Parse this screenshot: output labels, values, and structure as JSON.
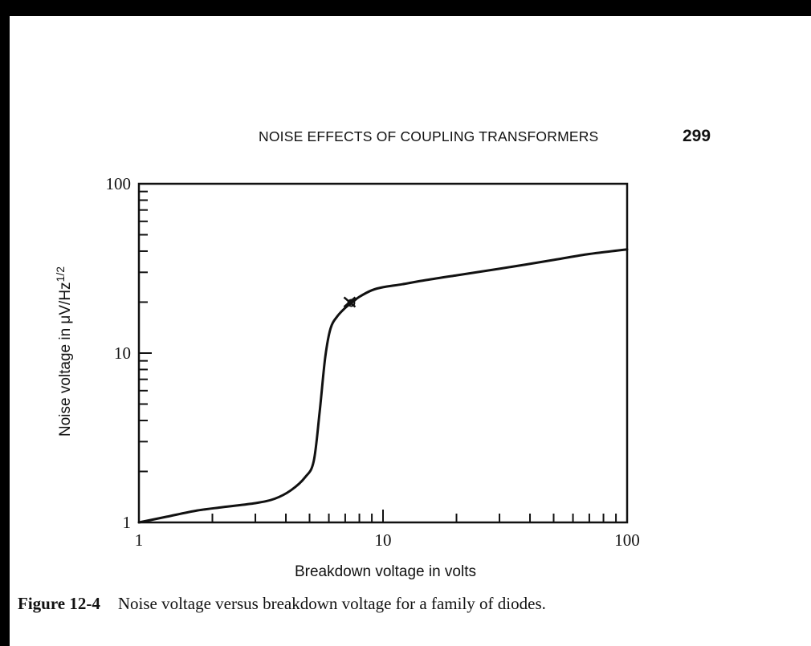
{
  "running_head": "NOISE EFFECTS OF COUPLING TRANSFORMERS",
  "page_number": "299",
  "caption": {
    "figure_number": "Figure 12-4",
    "text": "Noise voltage versus breakdown voltage for a family of diodes."
  },
  "chart_data": {
    "type": "line",
    "xlabel": "Breakdown voltage in volts",
    "ylabel_main": "Noise voltage in μV/Hz",
    "ylabel_superscript": "1/2",
    "x_scale": "log",
    "y_scale": "log",
    "xlim": [
      1,
      100
    ],
    "ylim": [
      1,
      100
    ],
    "x_tick_labels": [
      {
        "value": 1,
        "label": "1"
      },
      {
        "value": 10,
        "label": "10"
      },
      {
        "value": 100,
        "label": "100"
      }
    ],
    "y_tick_labels": [
      {
        "value": 1,
        "label": "1"
      },
      {
        "value": 10,
        "label": "10"
      },
      {
        "value": 100,
        "label": "100"
      }
    ],
    "grid": false,
    "series": [
      {
        "x": [
          1,
          1.3,
          1.7,
          2.2,
          3.0,
          3.6,
          4.2,
          4.8,
          5.2,
          5.5,
          5.8,
          6.1,
          6.5,
          7.0,
          7.5,
          8.0,
          9.0,
          10,
          12,
          15,
          20,
          30,
          50,
          70,
          100
        ],
        "y": [
          1,
          1.08,
          1.17,
          1.23,
          1.3,
          1.38,
          1.55,
          1.85,
          2.3,
          4.5,
          9.5,
          14,
          16.5,
          18.5,
          20,
          21.5,
          23.5,
          24.5,
          25.5,
          27,
          28.8,
          31.5,
          35.5,
          38.5,
          41
        ]
      }
    ],
    "annotations": [
      {
        "type": "marker",
        "x": 7.3,
        "y": 20
      }
    ]
  }
}
